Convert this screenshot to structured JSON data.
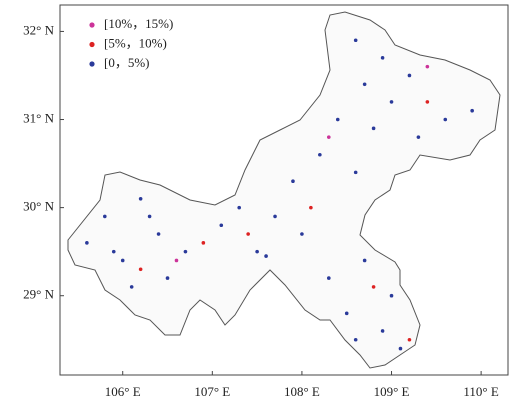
{
  "chart_data": {
    "type": "scatter",
    "xlim": [
      105.3,
      110.3
    ],
    "ylim": [
      28.1,
      32.3
    ],
    "xticks": [
      {
        "value": 106,
        "label": "106° E"
      },
      {
        "value": 107,
        "label": "107° E"
      },
      {
        "value": 108,
        "label": "108° E"
      },
      {
        "value": 109,
        "label": "109° E"
      },
      {
        "value": 110,
        "label": "110° E"
      }
    ],
    "yticks": [
      {
        "value": 29,
        "label": "29° N"
      },
      {
        "value": 30,
        "label": "30° N"
      },
      {
        "value": 31,
        "label": "31° N"
      },
      {
        "value": 32,
        "label": "32° N"
      }
    ],
    "legend": "upper left",
    "series": [
      {
        "name": "[10%，15%)",
        "color": "#cc3399",
        "x": [
          106.6,
          108.3,
          109.4
        ],
        "values": [
          29.4,
          30.8,
          31.6
        ]
      },
      {
        "name": "[5%，10%)",
        "color": "#dd2222",
        "x": [
          106.9,
          107.4,
          108.1,
          109.4,
          108.8,
          106.2,
          109.2
        ],
        "values": [
          29.6,
          29.7,
          30.0,
          31.2,
          29.1,
          29.3,
          28.5
        ]
      },
      {
        "name": "[0，5%)",
        "color": "#2a3a9a",
        "x": [
          105.6,
          105.8,
          106.0,
          106.2,
          106.4,
          106.5,
          106.7,
          106.1,
          105.9,
          106.3,
          107.1,
          107.3,
          107.5,
          107.7,
          107.9,
          107.6,
          108.0,
          108.3,
          108.5,
          108.7,
          108.9,
          109.0,
          109.1,
          108.6,
          108.2,
          108.4,
          108.6,
          108.8,
          109.0,
          109.3,
          109.6,
          109.9,
          108.7,
          108.9,
          108.6,
          109.2
        ],
        "values": [
          29.6,
          29.9,
          29.4,
          30.1,
          29.7,
          29.2,
          29.5,
          29.1,
          29.5,
          29.9,
          29.8,
          30.0,
          29.5,
          29.9,
          30.3,
          29.45,
          29.7,
          29.2,
          28.8,
          29.4,
          28.6,
          29.0,
          28.4,
          28.5,
          30.6,
          31.0,
          30.4,
          30.9,
          31.2,
          30.8,
          31.0,
          31.1,
          31.4,
          31.7,
          31.9,
          31.5
        ]
      }
    ]
  }
}
